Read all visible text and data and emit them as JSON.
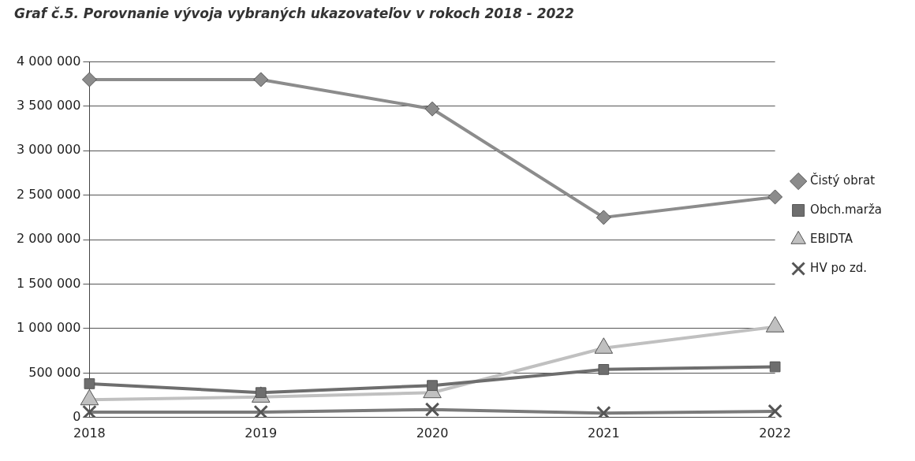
{
  "chart_data": {
    "type": "line",
    "title": "Graf č.5. Porovnanie vývoja vybraných ukazovateľov v rokoch 2018 - 2022",
    "categories": [
      "2018",
      "2019",
      "2020",
      "2021",
      "2022"
    ],
    "series": [
      {
        "name": "Čistý obrat",
        "color": "#8c8c8c",
        "marker": "diamond",
        "values": [
          3800000,
          3800000,
          3470000,
          2250000,
          2480000
        ]
      },
      {
        "name": "Obch.marža",
        "color": "#6e6e6e",
        "marker": "square",
        "values": [
          380000,
          280000,
          360000,
          540000,
          570000
        ]
      },
      {
        "name": "EBIDTA",
        "color": "#c0c0c0",
        "marker": "triangle",
        "values": [
          200000,
          230000,
          280000,
          780000,
          1020000
        ]
      },
      {
        "name": "HV po zd.",
        "color": "#7a7a7a",
        "marker": "cross",
        "values": [
          60000,
          60000,
          90000,
          50000,
          70000
        ]
      }
    ],
    "ylim": [
      0,
      4000000
    ],
    "yticks": [
      0,
      500000,
      1000000,
      1500000,
      2000000,
      2500000,
      3000000,
      3500000,
      4000000
    ],
    "grid": "y",
    "legend": "right",
    "line_style": "solid"
  }
}
